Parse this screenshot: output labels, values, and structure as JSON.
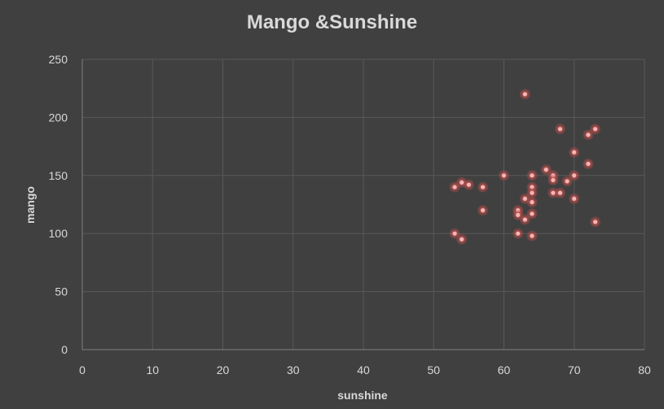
{
  "chart_data": {
    "type": "scatter",
    "title": "Mango &Sunshine",
    "xlabel": "sunshine",
    "ylabel": "mango",
    "xlim": [
      0,
      80
    ],
    "ylim": [
      0,
      250
    ],
    "xticks": [
      "0",
      "10",
      "20",
      "30",
      "40",
      "50",
      "60",
      "70",
      "80"
    ],
    "yticks": [
      "0",
      "50",
      "100",
      "150",
      "200",
      "250"
    ],
    "grid": true,
    "legend": "none",
    "colors": {
      "background": "#404040",
      "grid": "#595959",
      "axis": "#7f7f7f",
      "text": "#d9d9d9",
      "marker": "#f4b6b6",
      "marker_glow": "#c0504d"
    },
    "series": [
      {
        "points": [
          [
            53,
            140
          ],
          [
            54,
            144
          ],
          [
            55,
            142
          ],
          [
            57,
            140
          ],
          [
            57,
            120
          ],
          [
            53,
            100
          ],
          [
            54,
            95
          ],
          [
            60,
            150
          ],
          [
            62,
            120
          ],
          [
            62,
            116
          ],
          [
            62,
            100
          ],
          [
            63,
            220
          ],
          [
            63,
            130
          ],
          [
            63,
            112
          ],
          [
            64,
            150
          ],
          [
            64,
            140
          ],
          [
            64,
            135
          ],
          [
            64,
            127
          ],
          [
            64,
            117
          ],
          [
            64,
            98
          ],
          [
            66,
            155
          ],
          [
            67,
            150
          ],
          [
            67,
            146
          ],
          [
            67,
            135
          ],
          [
            68,
            190
          ],
          [
            68,
            135
          ],
          [
            69,
            145
          ],
          [
            70,
            170
          ],
          [
            70,
            150
          ],
          [
            70,
            130
          ],
          [
            72,
            185
          ],
          [
            72,
            160
          ],
          [
            73,
            190
          ],
          [
            73,
            110
          ]
        ]
      }
    ]
  }
}
